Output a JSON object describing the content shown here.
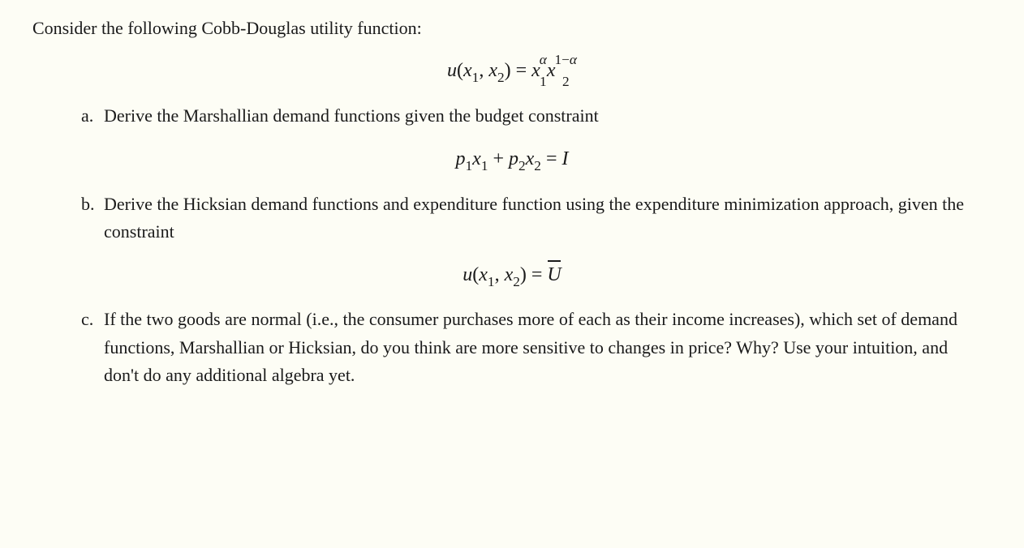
{
  "colors": {
    "background": "#fdfdf5",
    "text": "#1a1a1a"
  },
  "typography": {
    "body_font": "Georgia / Times-like serif",
    "body_fontsize_pt": 17,
    "equation_font": "Times italic",
    "equation_fontsize_pt": 18
  },
  "intro": "Consider the following Cobb-Douglas utility function:",
  "equation_main": "u(x1, x2) = x1^α · x2^(1−α)",
  "items": {
    "a": {
      "label": "a.",
      "text": "Derive the Marshallian demand functions given the budget constraint",
      "equation": "p1 x1 + p2 x2 = I"
    },
    "b": {
      "label": "b.",
      "text": "Derive the Hicksian demand functions and expenditure function using the expenditure minimization approach, given the constraint",
      "equation": "u(x1, x2) = Ū"
    },
    "c": {
      "label": "c.",
      "text": "If the two goods are normal (i.e., the consumer purchases more of each as their income increases), which set of demand functions, Marshallian or Hicksian, do you think are more sensitive to changes in price? Why? Use your intuition, and don't do any additional algebra yet."
    }
  }
}
